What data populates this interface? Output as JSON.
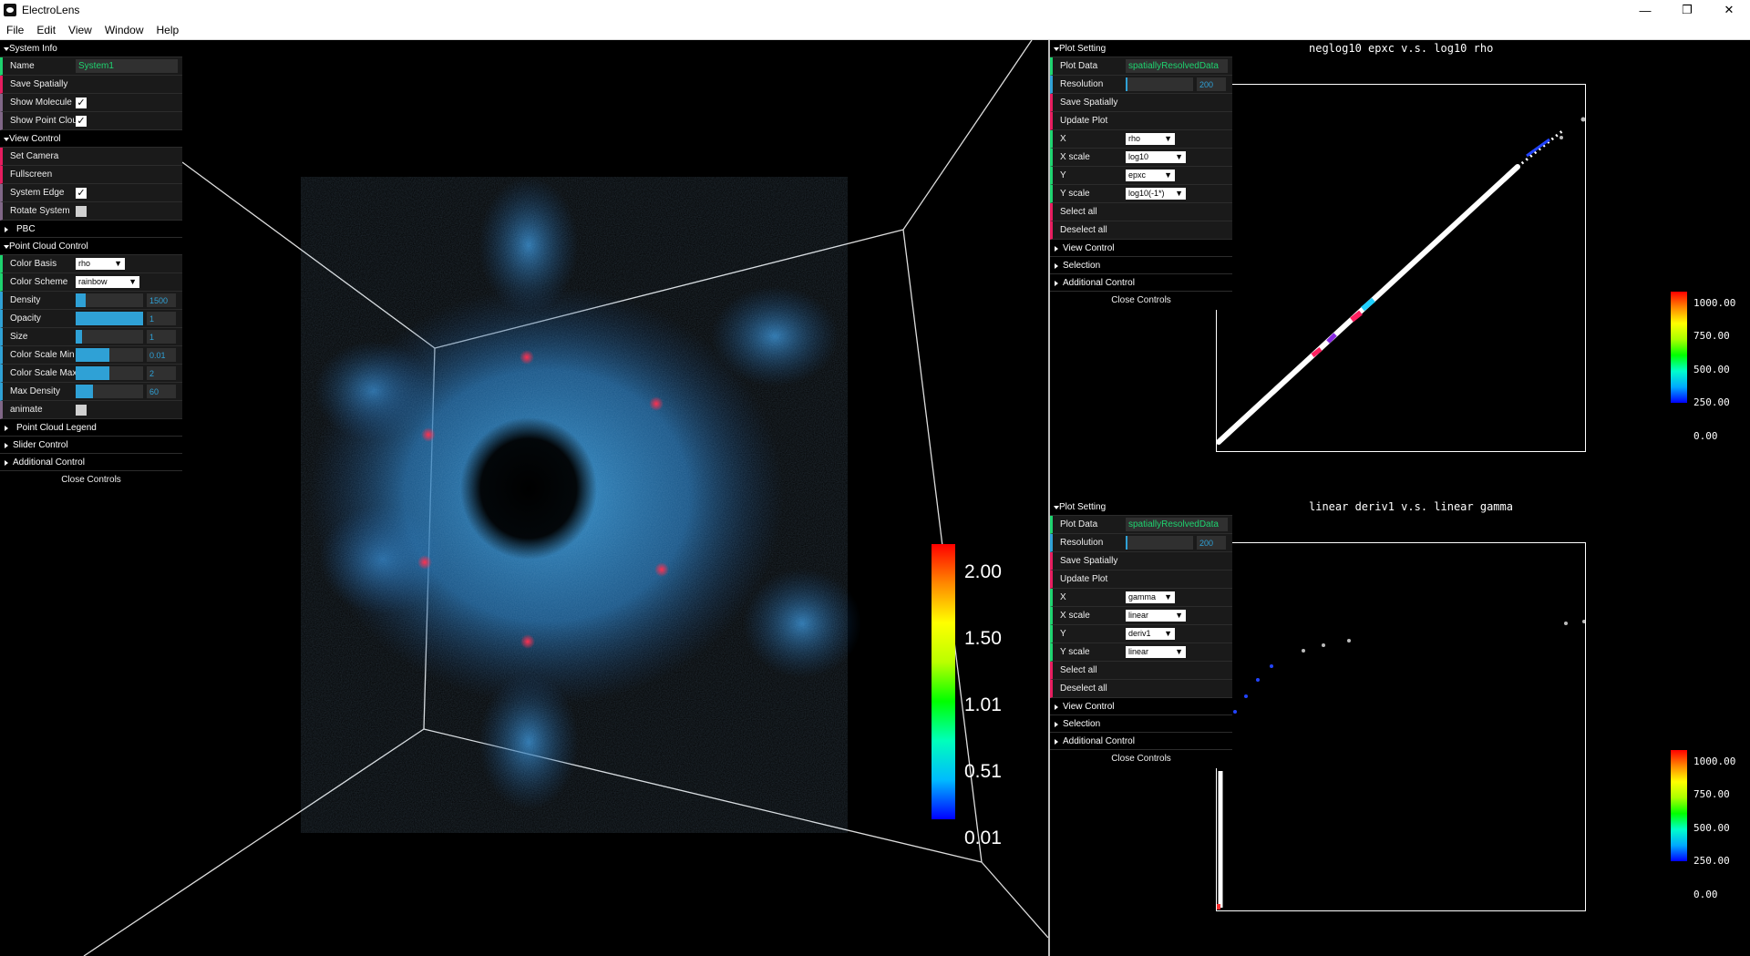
{
  "window": {
    "title": "ElectroLens",
    "minimize": "—",
    "maximize": "❐",
    "close": "✕"
  },
  "menu": [
    "File",
    "Edit",
    "View",
    "Window",
    "Help"
  ],
  "left_gui": {
    "system_info": "System Info",
    "name_label": "Name",
    "name_value": "System1",
    "save_spatially": "Save Spatially",
    "show_molecule": "Show Molecule",
    "show_point_cloud": "Show Point Cloud",
    "view_control": "View Control",
    "set_camera": "Set Camera",
    "fullscreen": "Fullscreen",
    "system_edge": "System Edge",
    "rotate_system": "Rotate System",
    "pbc": "PBC",
    "point_cloud_control": "Point Cloud Control",
    "color_basis_label": "Color Basis",
    "color_basis_value": "rho",
    "color_scheme_label": "Color Scheme",
    "color_scheme_value": "rainbow",
    "density_label": "Density",
    "density_value": "1500",
    "opacity_label": "Opacity",
    "opacity_value": "1",
    "size_label": "Size",
    "size_value": "1",
    "cs_min_label": "Color Scale Min",
    "cs_min_value": "0.01",
    "cs_max_label": "Color Scale Max",
    "cs_max_value": "2",
    "max_density_label": "Max Density",
    "max_density_value": "60",
    "animate": "animate",
    "point_cloud_legend": "Point Cloud Legend",
    "slider_control": "Slider Control",
    "additional_control": "Additional Control",
    "close_controls": "Close Controls"
  },
  "viewport_legend": {
    "labels": [
      "2.00",
      "1.50",
      "1.01",
      "0.51",
      "0.01"
    ]
  },
  "plot1": {
    "title": "neglog10 epxc v.s. log10 rho",
    "gui": {
      "plot_setting": "Plot Setting",
      "plot_data_label": "Plot Data",
      "plot_data_value": "spatiallyResolvedData",
      "resolution_label": "Resolution",
      "resolution_value": "200",
      "save_spatially": "Save Spatially",
      "update_plot": "Update Plot",
      "x_label": "X",
      "x_value": "rho",
      "xscale_label": "X scale",
      "xscale_value": "log10",
      "y_label": "Y",
      "y_value": "epxc",
      "yscale_label": "Y scale",
      "yscale_value": "log10(-1*)",
      "select_all": "Select all",
      "deselect_all": "Deselect all",
      "view_control": "View Control",
      "selection": "Selection",
      "additional_control": "Additional Control",
      "close_controls": "Close Controls"
    },
    "legend_labels": [
      "1000.00",
      "750.00",
      "500.00",
      "250.00",
      "0.00"
    ]
  },
  "plot2": {
    "title": "linear deriv1 v.s. linear gamma",
    "gui": {
      "plot_setting": "Plot Setting",
      "plot_data_label": "Plot Data",
      "plot_data_value": "spatiallyResolvedData",
      "resolution_label": "Resolution",
      "resolution_value": "200",
      "save_spatially": "Save Spatially",
      "update_plot": "Update Plot",
      "x_label": "X",
      "x_value": "gamma",
      "xscale_label": "X scale",
      "xscale_value": "linear",
      "y_label": "Y",
      "y_value": "deriv1",
      "yscale_label": "Y scale",
      "yscale_value": "linear",
      "select_all": "Select all",
      "deselect_all": "Deselect all",
      "view_control": "View Control",
      "selection": "Selection",
      "additional_control": "Additional Control",
      "close_controls": "Close Controls"
    },
    "legend_labels": [
      "1000.00",
      "750.00",
      "500.00",
      "250.00",
      "0.00"
    ]
  }
}
